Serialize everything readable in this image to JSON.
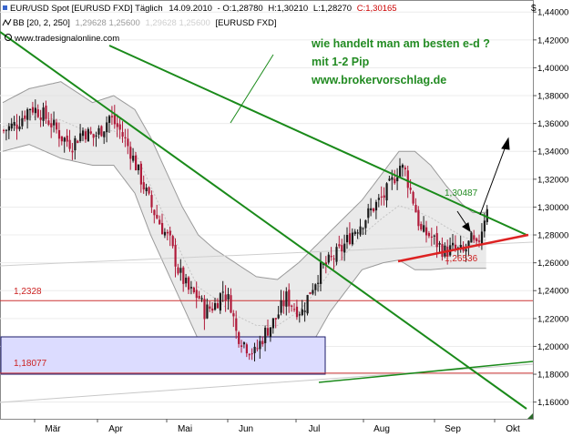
{
  "header": {
    "instrument": "EUR/USD Spot [EURUSD FXD]  Täglich",
    "date": "14.09.2010",
    "ohlc_o": "- O:1,28780",
    "ohlc_h": "H:1,30210",
    "ohlc_l": "L:1,28270",
    "ohlc_c": "C:1,30165",
    "bb_label": "BB [20, 2, 250]",
    "bb_values": "1,29628 1,25600",
    "bb_values_faint": "1,29628 1,25600",
    "bb_symbol": "[EURUSD FXD]",
    "source": "www.tradesignalonline.com",
    "currency": "$"
  },
  "annotation": {
    "line1": "wie handelt man am besten e-d ?",
    "line2": "mit 1-2 Pip",
    "line3": "www.brokervorschlag.de"
  },
  "colors": {
    "up_candle": "#1a1a1a",
    "down_candle": "#b01a3a",
    "trendline": "#1a8a1a",
    "support_line": "#dd2222",
    "horizontal_line": "#cc3333",
    "band_fill": "#d9d9d9",
    "highlight_box": "#dcdcff",
    "annotation_text": "#228b22"
  },
  "chart_data": {
    "type": "candlestick",
    "x_axis": {
      "ticks": [
        "Mär",
        "Apr",
        "Mai",
        "Jun",
        "Jul",
        "Aug",
        "Sep",
        "Okt"
      ]
    },
    "y_axis": {
      "range": [
        1.148,
        1.448
      ],
      "ticks": [
        1.16,
        1.18,
        1.2,
        1.22,
        1.24,
        1.26,
        1.28,
        1.3,
        1.32,
        1.34,
        1.36,
        1.38,
        1.4,
        1.42,
        1.44
      ],
      "tick_labels": [
        "1,16000",
        "1,18000",
        "1,20000",
        "1,22000",
        "1,24000",
        "1,26000",
        "1,28000",
        "1,30000",
        "1,32000",
        "1,34000",
        "1,36000",
        "1,38000",
        "1,40000",
        "1,42000",
        "1,44000"
      ]
    },
    "close_path": [
      [
        0,
        1.355
      ],
      [
        5,
        1.36
      ],
      [
        10,
        1.372
      ],
      [
        14,
        1.368
      ],
      [
        18,
        1.36
      ],
      [
        22,
        1.35
      ],
      [
        26,
        1.345
      ],
      [
        30,
        1.355
      ],
      [
        34,
        1.35
      ],
      [
        38,
        1.358
      ],
      [
        40,
        1.365
      ],
      [
        44,
        1.355
      ],
      [
        48,
        1.34
      ],
      [
        52,
        1.32
      ],
      [
        56,
        1.3
      ],
      [
        60,
        1.285
      ],
      [
        63,
        1.275
      ],
      [
        66,
        1.255
      ],
      [
        70,
        1.24
      ],
      [
        74,
        1.235
      ],
      [
        76,
        1.225
      ],
      [
        80,
        1.23
      ],
      [
        83,
        1.24
      ],
      [
        86,
        1.23
      ],
      [
        88,
        1.21
      ],
      [
        92,
        1.2
      ],
      [
        95,
        1.195
      ],
      [
        99,
        1.21
      ],
      [
        103,
        1.22
      ],
      [
        107,
        1.235
      ],
      [
        110,
        1.228
      ],
      [
        113,
        1.225
      ],
      [
        116,
        1.24
      ],
      [
        120,
        1.255
      ],
      [
        124,
        1.262
      ],
      [
        128,
        1.27
      ],
      [
        132,
        1.282
      ],
      [
        136,
        1.29
      ],
      [
        140,
        1.3
      ],
      [
        144,
        1.308
      ],
      [
        147,
        1.318
      ],
      [
        150,
        1.33
      ],
      [
        152,
        1.325
      ],
      [
        155,
        1.305
      ],
      [
        158,
        1.282
      ],
      [
        161,
        1.28
      ],
      [
        164,
        1.274
      ],
      [
        167,
        1.268
      ],
      [
        170,
        1.27
      ],
      [
        174,
        1.267
      ],
      [
        177,
        1.276
      ],
      [
        179,
        1.27
      ],
      [
        181,
        1.285
      ],
      [
        183,
        1.3017
      ]
    ],
    "bollinger": {
      "upper": [
        [
          0,
          1.375
        ],
        [
          10,
          1.385
        ],
        [
          22,
          1.39
        ],
        [
          34,
          1.375
        ],
        [
          42,
          1.38
        ],
        [
          50,
          1.37
        ],
        [
          56,
          1.35
        ],
        [
          62,
          1.325
        ],
        [
          68,
          1.3
        ],
        [
          74,
          1.28
        ],
        [
          80,
          1.27
        ],
        [
          88,
          1.26
        ],
        [
          96,
          1.25
        ],
        [
          104,
          1.248
        ],
        [
          112,
          1.26
        ],
        [
          120,
          1.275
        ],
        [
          128,
          1.29
        ],
        [
          136,
          1.305
        ],
        [
          144,
          1.325
        ],
        [
          150,
          1.34
        ],
        [
          156,
          1.34
        ],
        [
          162,
          1.33
        ],
        [
          168,
          1.315
        ],
        [
          174,
          1.302
        ],
        [
          178,
          1.296
        ],
        [
          183,
          1.2963
        ]
      ],
      "lower": [
        [
          0,
          1.34
        ],
        [
          10,
          1.345
        ],
        [
          22,
          1.335
        ],
        [
          34,
          1.33
        ],
        [
          42,
          1.33
        ],
        [
          50,
          1.31
        ],
        [
          56,
          1.28
        ],
        [
          62,
          1.255
        ],
        [
          68,
          1.23
        ],
        [
          74,
          1.205
        ],
        [
          80,
          1.2
        ],
        [
          88,
          1.185
        ],
        [
          96,
          1.18
        ],
        [
          104,
          1.182
        ],
        [
          112,
          1.19
        ],
        [
          118,
          1.205
        ],
        [
          124,
          1.225
        ],
        [
          130,
          1.24
        ],
        [
          136,
          1.255
        ],
        [
          144,
          1.26
        ],
        [
          150,
          1.262
        ],
        [
          156,
          1.255
        ],
        [
          162,
          1.255
        ],
        [
          168,
          1.256
        ],
        [
          174,
          1.256
        ],
        [
          178,
          1.256
        ],
        [
          183,
          1.256
        ]
      ]
    },
    "annotations": {
      "level_1": {
        "value": 1.2328,
        "label": "1,2328"
      },
      "level_2": {
        "value": 1.18077,
        "label": "1,18077"
      },
      "high_marker": "1,30487",
      "low_marker": "1,26536"
    }
  }
}
